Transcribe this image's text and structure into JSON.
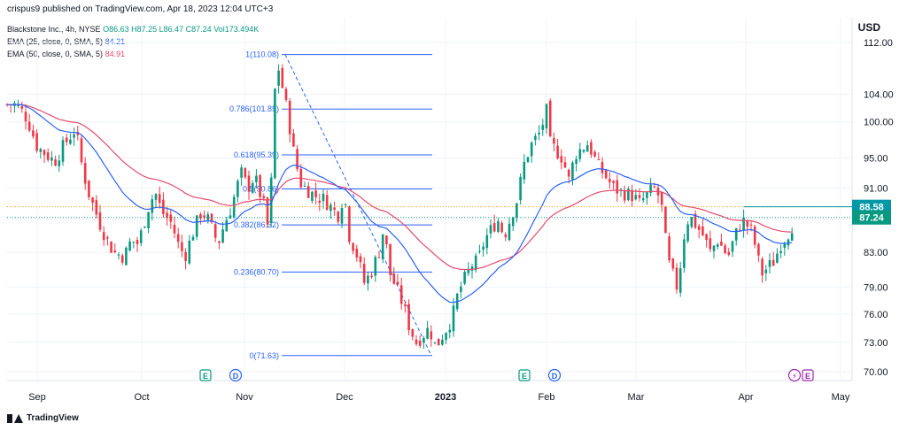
{
  "header": {
    "published": "crispus9 published on TradingView.com, Apr 18, 2023 12:04 UTC+3"
  },
  "legend": {
    "title": "Blackstone Inc., 4h, NYSE",
    "ohlc": "O86.63 H87.25 L86.47 C87.24",
    "volume": "Vol173.494K",
    "ema25_label": "EMA (25, close, 0, SMA, 5)",
    "ema25_value": "84.21",
    "ema50_label": "EMA (50, close, 0, SMA, 5)",
    "ema50_value": "84.91"
  },
  "currency": "USD",
  "footer": {
    "brand": "TradingView"
  },
  "colors": {
    "up": "#089981",
    "down": "#f23645",
    "ema25": "#2962ff",
    "ema50": "#e64a6e",
    "fib": "#2962ff",
    "priceTag": "#0097a7",
    "grid": "#f0f3fa"
  },
  "chart_data": {
    "type": "candlestick",
    "y_axis": {
      "ticks": [
        112.0,
        104.0,
        100.0,
        95.0,
        91.0,
        87.0,
        83.0,
        79.0,
        76.0,
        73.0,
        70.0
      ],
      "tick_labels": [
        "112.00",
        "104.00",
        "100.00",
        "95.00",
        "91.00",
        "87.00",
        "83.00",
        "79.00",
        "76.00",
        "73.00",
        "70.00"
      ],
      "scale": "log"
    },
    "x_axis": {
      "labels": [
        "Sep",
        "Oct",
        "Nov",
        "Dec",
        "2023",
        "Feb",
        "Mar",
        "Apr",
        "May"
      ]
    },
    "price_tags": [
      {
        "label": "88.58",
        "value": 88.58
      },
      {
        "label": "87.24",
        "value": 87.24
      }
    ],
    "fibonacci": {
      "levels": [
        {
          "label": "1(110.08)",
          "price": 110.08
        },
        {
          "label": "0.786(101.85)",
          "price": 101.85
        },
        {
          "label": "0.618(95.39)",
          "price": 95.39
        },
        {
          "label": "0.5(90.86)",
          "price": 90.86
        },
        {
          "label": "0.382(86.32)",
          "price": 86.32
        },
        {
          "label": "0.236(80.70)",
          "price": 80.7
        },
        {
          "label": "0(71.63)",
          "price": 71.63
        }
      ]
    },
    "events": [
      {
        "label": "E"
      },
      {
        "label": "D"
      },
      {
        "label": "E"
      },
      {
        "label": "D"
      },
      {
        "label": "⚡"
      },
      {
        "label": "E"
      }
    ],
    "close_path": [
      [
        "Aug 26",
        102.5
      ],
      [
        "Aug 29",
        100.5
      ],
      [
        "Sep 1",
        96.5
      ],
      [
        "Sep 6",
        94.5
      ],
      [
        "Sep 9",
        97.0
      ],
      [
        "Sep 12",
        99.0
      ],
      [
        "Sep 14",
        93.5
      ],
      [
        "Sep 16",
        90.0
      ],
      [
        "Sep 19",
        86.5
      ],
      [
        "Sep 21",
        84.5
      ],
      [
        "Sep 23",
        83.0
      ],
      [
        "Sep 26",
        82.5
      ],
      [
        "Sep 28",
        84.5
      ],
      [
        "Sep 30",
        84.0
      ],
      [
        "Oct 3",
        88.5
      ],
      [
        "Oct 5",
        90.5
      ],
      [
        "Oct 7",
        88.0
      ],
      [
        "Oct 10",
        86.5
      ],
      [
        "Oct 12",
        84.0
      ],
      [
        "Oct 14",
        82.5
      ],
      [
        "Oct 17",
        86.0
      ],
      [
        "Oct 19",
        88.0
      ],
      [
        "Oct 21",
        87.0
      ],
      [
        "Oct 24",
        84.0
      ],
      [
        "Oct 26",
        86.5
      ],
      [
        "Oct 28",
        88.5
      ],
      [
        "Oct 31",
        93.0
      ],
      [
        "Nov 2",
        91.0
      ],
      [
        "Nov 4",
        92.5
      ],
      [
        "Nov 7",
        88.5
      ],
      [
        "Nov 8",
        86.0
      ],
      [
        "Nov 9",
        91.5
      ],
      [
        "Nov 10",
        104.0
      ],
      [
        "Nov 11",
        108.5
      ],
      [
        "Nov 14",
        101.0
      ],
      [
        "Nov 16",
        95.0
      ],
      [
        "Nov 18",
        91.5
      ],
      [
        "Nov 22",
        90.0
      ],
      [
        "Nov 25",
        89.5
      ],
      [
        "Nov 29",
        87.5
      ],
      [
        "Dec 1",
        90.5
      ],
      [
        "Dec 2",
        85.5
      ],
      [
        "Dec 5",
        82.5
      ],
      [
        "Dec 7",
        79.5
      ],
      [
        "Dec 9",
        80.5
      ],
      [
        "Dec 12",
        83.5
      ],
      [
        "Dec 13",
        86.0
      ],
      [
        "Dec 15",
        80.5
      ],
      [
        "Dec 19",
        77.0
      ],
      [
        "Dec 21",
        74.5
      ],
      [
        "Dec 23",
        73.0
      ],
      [
        "Dec 27",
        74.5
      ],
      [
        "Dec 29",
        72.5
      ],
      [
        "Jan 3",
        75.5
      ],
      [
        "Jan 5",
        78.5
      ],
      [
        "Jan 9",
        81.5
      ],
      [
        "Jan 11",
        82.0
      ],
      [
        "Jan 13",
        84.5
      ],
      [
        "Jan 17",
        87.0
      ],
      [
        "Jan 19",
        85.0
      ],
      [
        "Jan 23",
        89.5
      ],
      [
        "Jan 25",
        94.0
      ],
      [
        "Jan 27",
        96.5
      ],
      [
        "Jan 30",
        98.5
      ],
      [
        "Feb 1",
        101.5
      ],
      [
        "Feb 2",
        97.0
      ],
      [
        "Feb 6",
        95.0
      ],
      [
        "Feb 8",
        92.0
      ],
      [
        "Feb 10",
        95.5
      ],
      [
        "Feb 14",
        97.0
      ],
      [
        "Feb 17",
        94.0
      ],
      [
        "Feb 22",
        91.0
      ],
      [
        "Feb 24",
        90.5
      ],
      [
        "Feb 28",
        90.0
      ],
      [
        "Mar 2",
        89.0
      ],
      [
        "Mar 6",
        91.0
      ],
      [
        "Mar 8",
        89.5
      ],
      [
        "Mar 10",
        82.0
      ],
      [
        "Mar 13",
        78.5
      ],
      [
        "Mar 14",
        84.0
      ],
      [
        "Mar 16",
        87.5
      ],
      [
        "Mar 20",
        85.0
      ],
      [
        "Mar 22",
        83.0
      ],
      [
        "Mar 24",
        84.5
      ],
      [
        "Mar 27",
        82.5
      ],
      [
        "Mar 29",
        85.0
      ],
      [
        "Mar 31",
        87.0
      ],
      [
        "Apr 3",
        85.5
      ],
      [
        "Apr 5",
        82.0
      ],
      [
        "Apr 6",
        80.5
      ],
      [
        "Apr 10",
        82.0
      ],
      [
        "Apr 12",
        84.0
      ],
      [
        "Apr 14",
        85.0
      ],
      [
        "Apr 17",
        87.24
      ]
    ]
  }
}
